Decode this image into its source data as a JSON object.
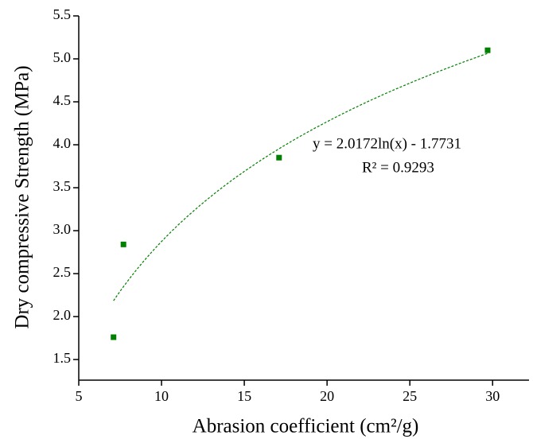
{
  "chart_data": {
    "type": "scatter",
    "x_label": "Abrasion coefficient (cm²/g)",
    "y_label": "Dry compressive Strength (MPa)",
    "annotations": [
      "y = 2.0172ln(x) - 1.7731",
      "R² = 0.9293"
    ],
    "series": [
      {
        "color": "#008000",
        "x": [
          7.1,
          7.7,
          17.1,
          29.7
        ],
        "values": [
          1.76,
          2.84,
          3.85,
          5.1
        ]
      }
    ],
    "xlim": [
      5,
      32.2
    ],
    "ylim": [
      1.26,
      5.5
    ],
    "xticks": [
      5,
      10,
      15,
      20,
      25,
      30
    ],
    "yticks": [
      1.5,
      {
        "value": 2,
        "label": "2.0"
      },
      2.5,
      {
        "value": 3,
        "label": "3.0"
      },
      3.5,
      {
        "value": 4,
        "label": "4.0"
      },
      4.5,
      {
        "value": 5,
        "label": "5.0"
      },
      5.5
    ]
  }
}
